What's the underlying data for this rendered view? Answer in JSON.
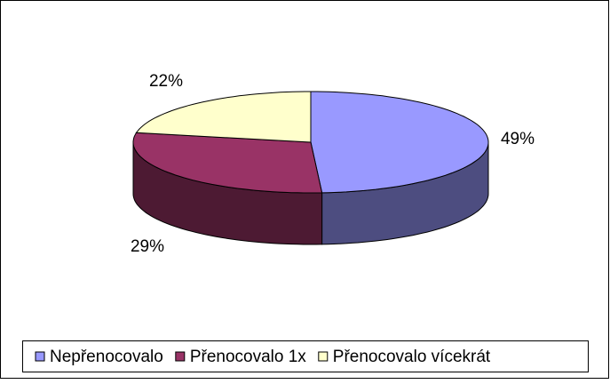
{
  "chart_data": {
    "type": "pie",
    "categories": [
      "Nepřenocovalo",
      "Přenocovalo 1x",
      "Přenocovalo vícekrát"
    ],
    "values": [
      49,
      29,
      22
    ],
    "value_labels": [
      "49%",
      "29%",
      "22%"
    ],
    "colors": [
      "#9999ff",
      "#993366",
      "#ffffcc"
    ],
    "legend": "bottom"
  }
}
